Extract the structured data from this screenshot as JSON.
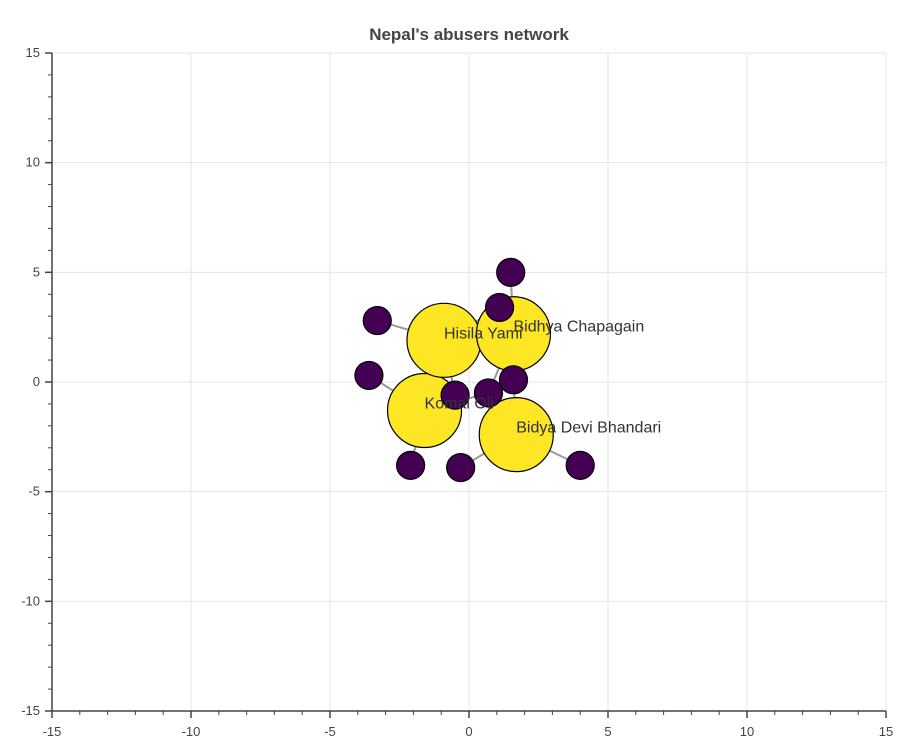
{
  "chart_data": {
    "type": "scatter",
    "title": "Nepal's abusers network",
    "xlim": [
      -15,
      15
    ],
    "ylim": [
      -15,
      15
    ],
    "x_ticks": [
      -15,
      -10,
      -5,
      0,
      5,
      10,
      15
    ],
    "y_ticks": [
      -15,
      -10,
      -5,
      0,
      5,
      10,
      15
    ],
    "x_tick_labels": [
      "-15",
      "-10",
      "-5",
      "0",
      "5",
      "10",
      "15"
    ],
    "y_tick_labels": [
      "-15",
      "-10",
      "-5",
      "0",
      "5",
      "10",
      "15"
    ],
    "grid": true,
    "colors": {
      "hub": "#fde725",
      "leaf": "#440154",
      "edge": "#9a9a9a",
      "grid": "#e5e5e5",
      "axis": "#444444"
    },
    "nodes": [
      {
        "id": "komal",
        "label": "Komal Oli",
        "x": -1.6,
        "y": -1.3,
        "type": "hub"
      },
      {
        "id": "hisila",
        "label": "Hisila Yami",
        "x": -0.9,
        "y": 1.9,
        "type": "hub"
      },
      {
        "id": "bidhya",
        "label": "Bidhya Chapagain",
        "x": 1.6,
        "y": 2.2,
        "type": "hub"
      },
      {
        "id": "bidya",
        "label": "Bidya Devi Bhandari",
        "x": 1.7,
        "y": -2.4,
        "type": "hub"
      },
      {
        "id": "n1",
        "label": "",
        "x": 1.5,
        "y": 5.0,
        "type": "leaf"
      },
      {
        "id": "n2",
        "label": "",
        "x": -3.3,
        "y": 2.8,
        "type": "leaf"
      },
      {
        "id": "n3",
        "label": "",
        "x": 1.1,
        "y": 3.4,
        "type": "leaf"
      },
      {
        "id": "n4",
        "label": "",
        "x": -3.6,
        "y": 0.3,
        "type": "leaf"
      },
      {
        "id": "n5",
        "label": "",
        "x": 1.6,
        "y": 0.1,
        "type": "leaf"
      },
      {
        "id": "n6",
        "label": "",
        "x": -0.5,
        "y": -0.6,
        "type": "leaf"
      },
      {
        "id": "n7",
        "label": "",
        "x": 0.7,
        "y": -0.5,
        "type": "leaf"
      },
      {
        "id": "n8",
        "label": "",
        "x": -2.1,
        "y": -3.8,
        "type": "leaf"
      },
      {
        "id": "n9",
        "label": "",
        "x": -0.3,
        "y": -3.9,
        "type": "leaf"
      },
      {
        "id": "n10",
        "label": "",
        "x": 4.0,
        "y": -3.8,
        "type": "leaf"
      }
    ],
    "edges": [
      [
        "hisila",
        "n2"
      ],
      [
        "hisila",
        "n3"
      ],
      [
        "hisila",
        "n6"
      ],
      [
        "bidhya",
        "n1"
      ],
      [
        "bidhya",
        "n3"
      ],
      [
        "bidhya",
        "n5"
      ],
      [
        "bidhya",
        "n7"
      ],
      [
        "komal",
        "n4"
      ],
      [
        "komal",
        "n6"
      ],
      [
        "komal",
        "n7"
      ],
      [
        "komal",
        "n8"
      ],
      [
        "bidya",
        "n7"
      ],
      [
        "bidya",
        "n9"
      ],
      [
        "bidya",
        "n10"
      ],
      [
        "bidya",
        "n5"
      ]
    ]
  }
}
